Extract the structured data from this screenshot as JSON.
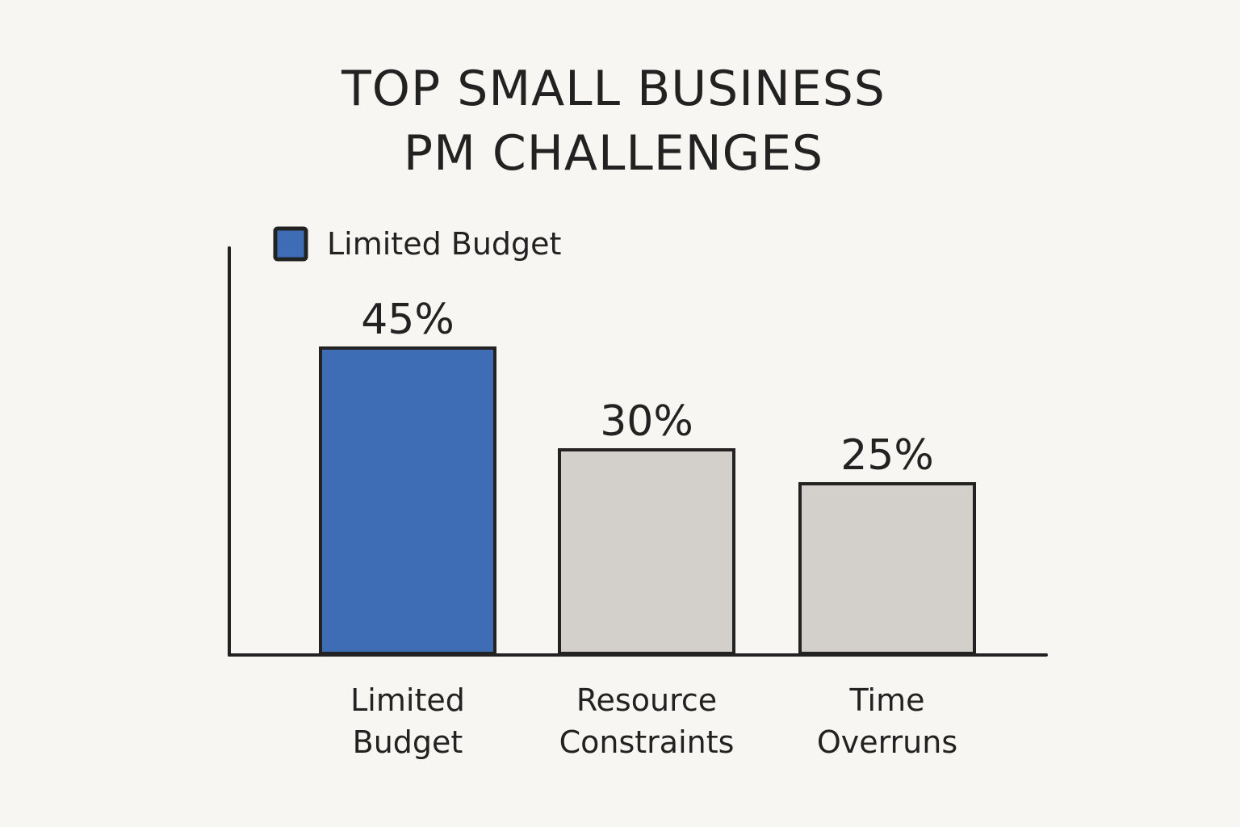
{
  "chart_data": {
    "type": "bar",
    "title": "TOP SMALL BUSINESS PM CHALLENGES",
    "title_lines": [
      "TOP SMALL BUSINESS",
      "PM CHALLENGES"
    ],
    "categories": [
      "Limited Budget",
      "Resource Constraints",
      "Time Overruns"
    ],
    "category_lines": [
      [
        "Limited",
        "Budget"
      ],
      [
        "Resource",
        "Constraints"
      ],
      [
        "Time",
        "Overruns"
      ]
    ],
    "values": [
      45,
      30,
      25
    ],
    "value_labels": [
      "45%",
      "30%",
      "25%"
    ],
    "unit": "%",
    "bar_colors": [
      "#3e6db5",
      "#d3d0cb",
      "#d3d0cb"
    ],
    "highlight_color": "#3e6db5",
    "default_color": "#d3d0cb",
    "outline_color": "#222222",
    "legend": {
      "placement": "top-left",
      "entries": [
        {
          "label": "Limited Budget",
          "color": "#3e6db5"
        }
      ]
    },
    "xlabel": "",
    "ylabel": "",
    "ylim": [
      0,
      50
    ],
    "grid": false,
    "y_ticks_shown": false
  }
}
